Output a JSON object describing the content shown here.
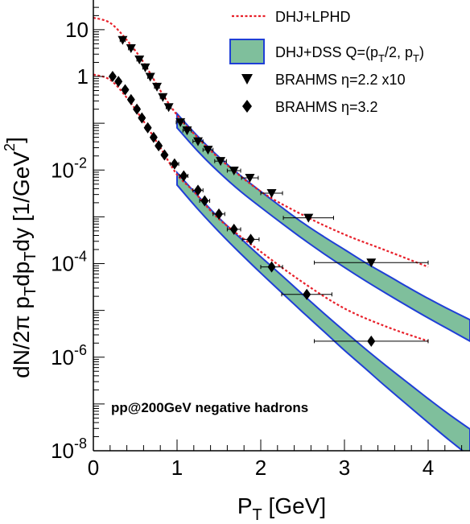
{
  "chart_data": {
    "type": "scatter",
    "title": "",
    "xlabel": "P",
    "xlabel_sub": "T",
    "xlabel_unit": " [GeV]",
    "ylabel_parts": [
      "dN/2π p",
      "T",
      "dp",
      "T",
      "dy [1/GeV",
      "2",
      "]"
    ],
    "x_scale": "linear",
    "y_scale": "log",
    "xlim": [
      0,
      4.5
    ],
    "ylim": [
      1e-08,
      50
    ],
    "x_ticks": [
      0,
      1,
      2,
      3,
      4
    ],
    "x_tick_labels": [
      "0",
      "1",
      "2",
      "3",
      "4"
    ],
    "y_ticks": [
      {
        "value": 1e-08,
        "base": "10",
        "exp": "-8"
      },
      {
        "value": 1e-06,
        "base": "10",
        "exp": "-6"
      },
      {
        "value": 0.0001,
        "base": "10",
        "exp": "-4"
      },
      {
        "value": 0.01,
        "base": "10",
        "exp": "-2"
      },
      {
        "value": 1,
        "base": "1",
        "exp": ""
      },
      {
        "value": 10,
        "base": "10",
        "exp": ""
      }
    ],
    "grid": false,
    "legend_position": "top-right",
    "annotation": "pp@200GeV negative hadrons",
    "series": [
      {
        "name": "DHJ+LPHD",
        "kind": "line",
        "style": "dotted",
        "color": "#e8202a",
        "curves": [
          {
            "x": [
              0,
              0.2,
              0.4,
              0.6,
              0.8,
              1.0,
              1.2,
              1.5,
              2.0,
              2.5,
              3.0,
              3.5,
              4.0
            ],
            "y": [
              18,
              14,
              6,
              2.0,
              0.5,
              0.15,
              0.06,
              0.018,
              0.0035,
              0.0011,
              0.00042,
              0.00019,
              8.5e-05
            ]
          },
          {
            "x": [
              0,
              0.2,
              0.4,
              0.6,
              0.8,
              1.0,
              1.2,
              1.5,
              2.0,
              2.5,
              3.0,
              3.5,
              4.0
            ],
            "y": [
              1.1,
              0.85,
              0.35,
              0.11,
              0.03,
              0.008,
              0.0035,
              0.0009,
              0.00018,
              4e-05,
              1.1e-05,
              4.5e-06,
              2.2e-06
            ]
          }
        ]
      },
      {
        "name": "DHJ+DSS Q=(p_T/2, p_T)",
        "kind": "band",
        "fill": "#7fbf9c",
        "stroke": "#1f3fd6",
        "bands": [
          {
            "x": [
              1.0,
              1.25,
              1.5,
              1.75,
              2.0,
              2.25,
              2.5,
              2.75,
              3.0,
              3.25,
              3.5,
              3.75,
              4.0,
              4.25,
              4.5
            ],
            "upper": [
              0.16,
              0.052,
              0.019,
              0.0078,
              0.0035,
              0.0016,
              0.00075,
              0.00038,
              0.0002,
              0.000105,
              5.8e-05,
              3.2e-05,
              1.8e-05,
              1.05e-05,
              6.3e-06
            ],
            "lower": [
              0.08,
              0.025,
              0.009,
              0.0036,
              0.0016,
              0.00073,
              0.00034,
              0.000165,
              8.3e-05,
              4.3e-05,
              2.3e-05,
              1.25e-05,
              6.9e-06,
              3.9e-06,
              2.2e-06
            ]
          },
          {
            "x": [
              1.0,
              1.25,
              1.5,
              1.75,
              2.0,
              2.25,
              2.5,
              2.75,
              3.0,
              3.25,
              3.5,
              3.75,
              4.0,
              4.25,
              4.5
            ],
            "upper": [
              0.0088,
              0.0028,
              0.00095,
              0.00036,
              0.00014,
              5.6e-05,
              2.2e-05,
              8.8e-06,
              3.6e-06,
              1.5e-06,
              6.5e-07,
              2.9e-07,
              1.3e-07,
              6e-08,
              2.9e-08
            ],
            "lower": [
              0.0048,
              0.00145,
              0.00048,
              0.00017,
              6.3e-05,
              2.4e-05,
              9.2e-06,
              3.6e-06,
              1.4e-06,
              5.7e-07,
              2.3e-07,
              9.6e-08,
              4e-08,
              1.7e-08,
              7.5e-09
            ]
          }
        ]
      },
      {
        "name": "BRAHMS η=2.2 x10",
        "kind": "points",
        "marker": "triangle-down",
        "points": [
          {
            "x": 0.35,
            "y": 6.0,
            "xerr": 0.03
          },
          {
            "x": 0.45,
            "y": 4.0,
            "xerr": 0.03
          },
          {
            "x": 0.55,
            "y": 2.3,
            "xerr": 0.03
          },
          {
            "x": 0.62,
            "y": 1.55,
            "xerr": 0.03
          },
          {
            "x": 0.68,
            "y": 0.98,
            "xerr": 0.03
          },
          {
            "x": 0.76,
            "y": 0.6,
            "xerr": 0.03
          },
          {
            "x": 0.83,
            "y": 0.36,
            "xerr": 0.03
          },
          {
            "x": 0.9,
            "y": 0.22,
            "xerr": 0.03
          },
          {
            "x": 1.04,
            "y": 0.105,
            "xerr": 0.05
          },
          {
            "x": 1.12,
            "y": 0.07,
            "xerr": 0.05
          },
          {
            "x": 1.25,
            "y": 0.041,
            "xerr": 0.06
          },
          {
            "x": 1.37,
            "y": 0.027,
            "xerr": 0.06
          },
          {
            "x": 1.52,
            "y": 0.0155,
            "xerr": 0.07
          },
          {
            "x": 1.68,
            "y": 0.0097,
            "xerr": 0.08
          },
          {
            "x": 1.87,
            "y": 0.0068,
            "xerr": 0.1
          },
          {
            "x": 2.13,
            "y": 0.0032,
            "xerr": 0.13
          },
          {
            "x": 2.57,
            "y": 0.00095,
            "xerr": 0.3
          },
          {
            "x": 3.32,
            "y": 0.000105,
            "xerr": 0.68
          }
        ]
      },
      {
        "name": "BRAHMS η=3.2",
        "kind": "points",
        "marker": "diamond",
        "points": [
          {
            "x": 0.23,
            "y": 1.0,
            "xerr": 0.03
          },
          {
            "x": 0.3,
            "y": 0.78,
            "xerr": 0.03
          },
          {
            "x": 0.38,
            "y": 0.52,
            "xerr": 0.03
          },
          {
            "x": 0.45,
            "y": 0.32,
            "xerr": 0.03
          },
          {
            "x": 0.52,
            "y": 0.2,
            "xerr": 0.03
          },
          {
            "x": 0.58,
            "y": 0.13,
            "xerr": 0.03
          },
          {
            "x": 0.65,
            "y": 0.08,
            "xerr": 0.03
          },
          {
            "x": 0.72,
            "y": 0.05,
            "xerr": 0.03
          },
          {
            "x": 0.78,
            "y": 0.033,
            "xerr": 0.03
          },
          {
            "x": 0.85,
            "y": 0.021,
            "xerr": 0.03
          },
          {
            "x": 0.97,
            "y": 0.0135,
            "xerr": 0.05
          },
          {
            "x": 1.08,
            "y": 0.0075,
            "xerr": 0.05
          },
          {
            "x": 1.25,
            "y": 0.0037,
            "xerr": 0.06
          },
          {
            "x": 1.33,
            "y": 0.0022,
            "xerr": 0.06
          },
          {
            "x": 1.5,
            "y": 0.00115,
            "xerr": 0.07
          },
          {
            "x": 1.68,
            "y": 0.00054,
            "xerr": 0.08
          },
          {
            "x": 1.88,
            "y": 0.00033,
            "xerr": 0.1
          },
          {
            "x": 2.13,
            "y": 8.5e-05,
            "xerr": 0.13
          },
          {
            "x": 2.55,
            "y": 2.2e-05,
            "xerr": 0.3
          },
          {
            "x": 3.32,
            "y": 2.2e-06,
            "xerr": 0.68
          }
        ]
      }
    ],
    "legend": [
      {
        "label": "DHJ+LPHD",
        "kind": "line"
      },
      {
        "label": "DHJ+DSS Q=(p",
        "label_sub": "T",
        "label_tail": "/2, p",
        "label_sub2": "T",
        "label_end": ")",
        "kind": "band"
      },
      {
        "label": "BRAHMS η=2.2 x10",
        "kind": "triangle-down"
      },
      {
        "label": "BRAHMS η=3.2",
        "kind": "diamond"
      }
    ]
  }
}
